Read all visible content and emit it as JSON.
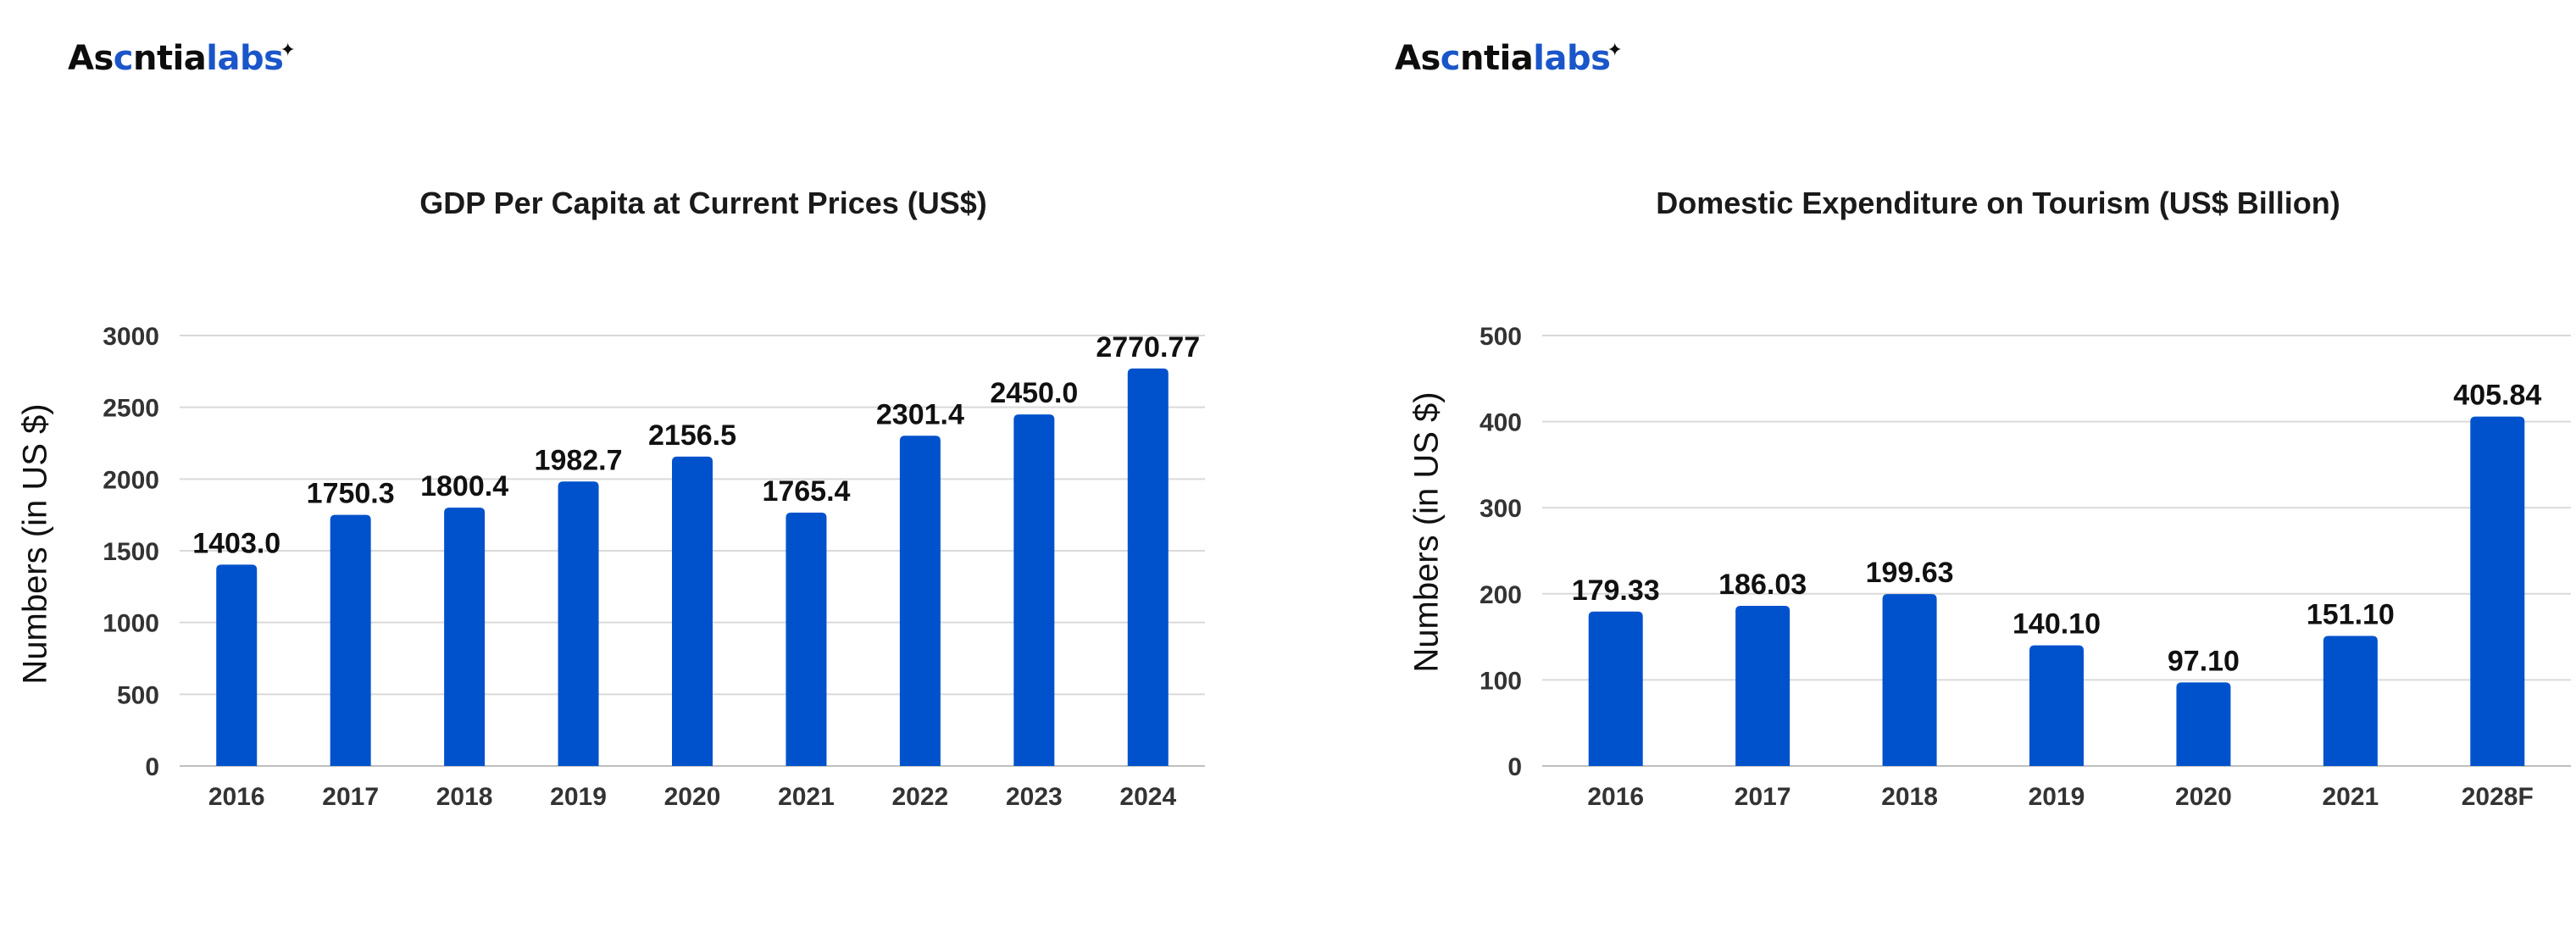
{
  "brand": {
    "logo_dark": "As",
    "logo_mid": "c",
    "logo_dark2": "ntia",
    "logo_blue": "labs",
    "accent": "#0052CC"
  },
  "chart_data": [
    {
      "type": "bar",
      "title": "GDP Per Capita at Current Prices (US$)",
      "xlabel": "",
      "ylabel": "Numbers (in US $)",
      "categories": [
        "2016",
        "2017",
        "2018",
        "2019",
        "2020",
        "2021",
        "2022",
        "2023",
        "2024"
      ],
      "values": [
        1403.0,
        1750.3,
        1800.4,
        1982.7,
        2156.5,
        1765.4,
        2301.4,
        2450.0,
        2770.77
      ],
      "value_labels": [
        "1403.0",
        "1750.3",
        "1800.4",
        "1982.7",
        "2156.5",
        "1765.4",
        "2301.4",
        "2450.0",
        "2770.77"
      ],
      "ylim": [
        0,
        3000
      ],
      "yticks": [
        0,
        500,
        1000,
        1500,
        2000,
        2500,
        3000
      ],
      "grid": true,
      "bar_color": "#0052CC"
    },
    {
      "type": "bar",
      "title": "Domestic Expenditure on Tourism (US$ Billion)",
      "xlabel": "",
      "ylabel": "Numbers (in US $)",
      "categories": [
        "2016",
        "2017",
        "2018",
        "2019",
        "2020",
        "2021",
        "2028F"
      ],
      "values": [
        179.33,
        186.03,
        199.63,
        140.1,
        97.1,
        151.1,
        405.84
      ],
      "value_labels": [
        "179.33",
        "186.03",
        "199.63",
        "140.10",
        "97.10",
        "151.10",
        "405.84"
      ],
      "ylim": [
        0,
        500
      ],
      "yticks": [
        0,
        100,
        200,
        300,
        400,
        500
      ],
      "grid": true,
      "bar_color": "#0052CC"
    }
  ]
}
